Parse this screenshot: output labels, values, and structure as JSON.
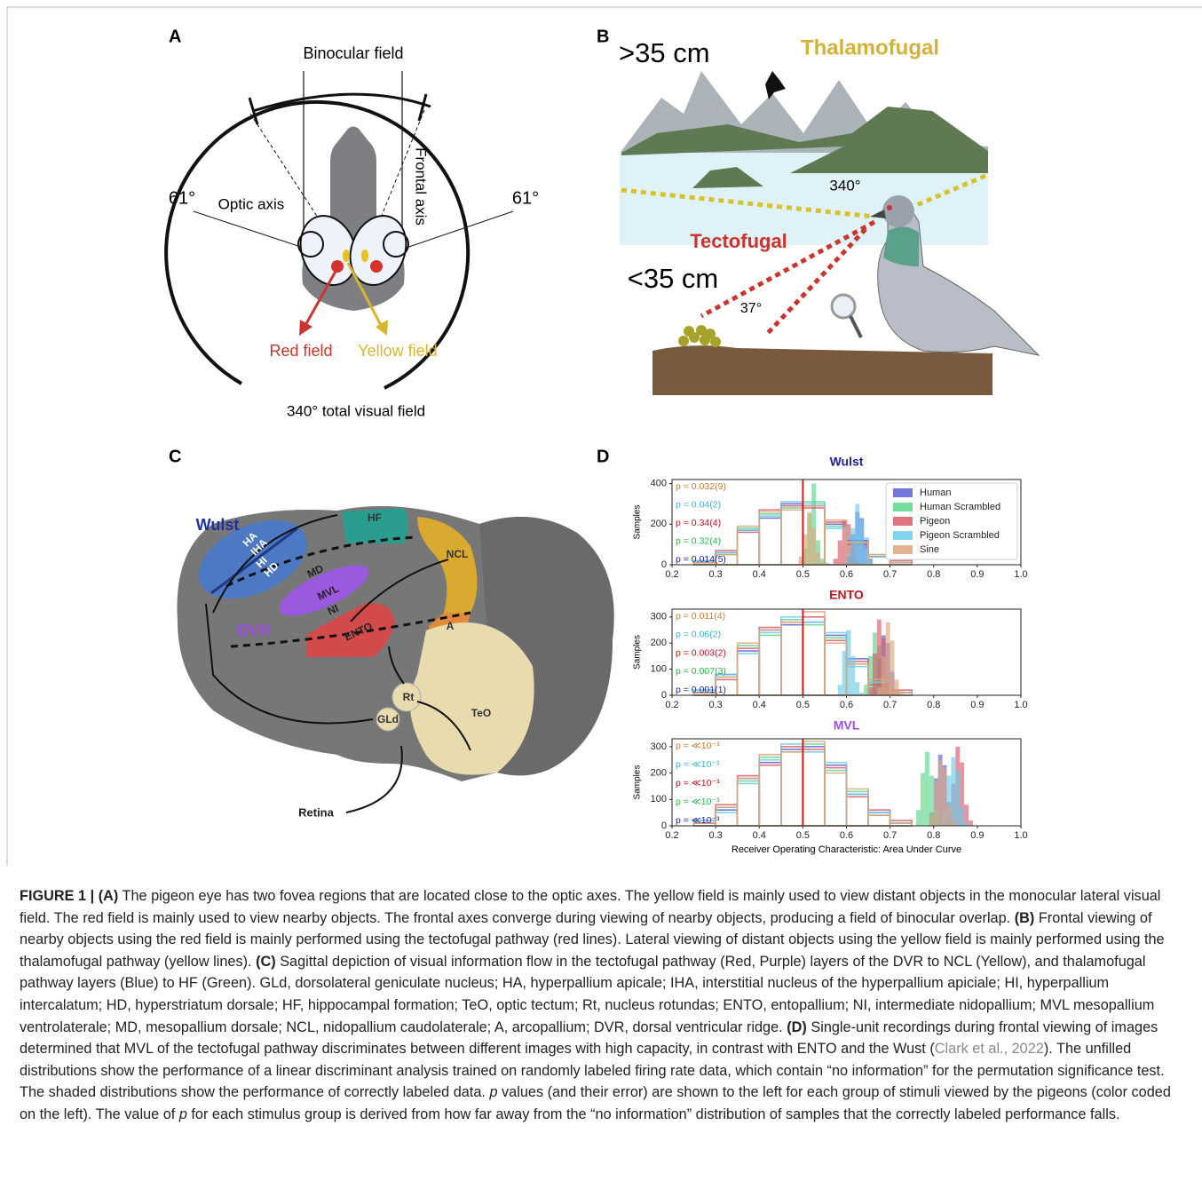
{
  "panel_a": {
    "label": "A",
    "binocular": "Binocular field",
    "angle_left": "61°",
    "angle_right": "61°",
    "optic_axis": "Optic axis",
    "frontal_axis": "Frontal axis",
    "red_field": "Red field",
    "yellow_field": "Yellow field",
    "total": "340° total visual field"
  },
  "panel_b": {
    "label": "B",
    "far": ">35 cm",
    "near": "<35 cm",
    "thalamofugal": "Thalamofugal",
    "tectofugal": "Tectofugal",
    "wide_angle": "340°",
    "narrow_angle": "37°"
  },
  "panel_c": {
    "label": "C",
    "wulst": "Wulst",
    "dvr": "DVR",
    "ha": "HA",
    "iha": "IHA",
    "hi": "HI",
    "hd": "HD",
    "hf": "HF",
    "ncl": "NCL",
    "md": "MD",
    "mvl": "MVL",
    "ni": "NI",
    "ento": "ENTO",
    "a": "A",
    "rt": "Rt",
    "gld": "GLd",
    "teo": "TeO",
    "retina": "Retina"
  },
  "panel_d": {
    "label": "D"
  },
  "chart_data": [
    {
      "type": "histogram",
      "title": "Wulst",
      "title_color": "#1f1f9e",
      "ylabel": "Samples",
      "xlim": [
        0.2,
        1.0
      ],
      "xticks": [
        0.2,
        0.3,
        0.4,
        0.5,
        0.6,
        0.7,
        0.8,
        0.9,
        {
          "value": 1.0,
          "label": "1.0"
        }
      ],
      "ylim": [
        0,
        420
      ],
      "yticks": [
        0,
        200,
        400
      ],
      "reference_line": {
        "value": 0.5,
        "color": "#d62020"
      },
      "legend": "upper right",
      "null_bins": [
        0.25,
        0.3,
        0.35,
        0.4,
        0.45,
        0.5,
        0.55,
        0.6,
        0.65,
        0.7,
        0.75
      ],
      "series": [
        {
          "name": "Human",
          "color": "#5b5fd6",
          "label_color": "#1f1f9e",
          "p_label": "p = 0.014(5)",
          "null_counts": [
            10,
            60,
            170,
            230,
            300,
            290,
            200,
            120,
            40,
            10
          ],
          "bins": [
            0.6,
            0.61,
            0.62,
            0.63,
            0.64,
            0.65,
            0.66
          ],
          "counts": [
            40,
            150,
            260,
            230,
            120,
            30
          ]
        },
        {
          "name": "Human Scrambled",
          "color": "#5dd68c",
          "label_color": "#2eb34a",
          "p_label": "p = 0.32(4)",
          "null_counts": [
            20,
            50,
            180,
            250,
            280,
            310,
            190,
            110,
            50,
            10
          ],
          "bins": [
            0.5,
            0.51,
            0.52,
            0.53,
            0.54,
            0.55,
            0.56
          ],
          "counts": [
            80,
            250,
            400,
            120,
            30,
            10
          ]
        },
        {
          "name": "Pigeon",
          "color": "#d95b6a",
          "label_color": "#c0141e",
          "p_label": "p = 0.34(4)",
          "null_counts": [
            10,
            70,
            160,
            270,
            290,
            280,
            210,
            100,
            40,
            20
          ],
          "bins": [
            0.57,
            0.58,
            0.59,
            0.6,
            0.61,
            0.62,
            0.63
          ],
          "counts": [
            30,
            120,
            220,
            200,
            90,
            20
          ]
        },
        {
          "name": "Pigeon Scrambled",
          "color": "#6ccbe8",
          "label_color": "#3fb2d0",
          "p_label": "p = 0.04(2)",
          "null_counts": [
            20,
            60,
            170,
            240,
            310,
            300,
            180,
            130,
            40,
            10
          ],
          "bins": [
            0.6,
            0.61,
            0.62,
            0.63,
            0.64,
            0.65,
            0.66
          ],
          "counts": [
            50,
            180,
            300,
            220,
            80,
            20
          ]
        },
        {
          "name": "Sine",
          "color": "#dca77c",
          "label_color": "#c87f3a",
          "p_label": "p = 0.032(9)",
          "null_counts": [
            10,
            50,
            190,
            260,
            270,
            290,
            220,
            110,
            50,
            10
          ],
          "bins": [
            0.49,
            0.5,
            0.51,
            0.52,
            0.53,
            0.54,
            0.55
          ],
          "counts": [
            40,
            150,
            260,
            180,
            60,
            10
          ]
        }
      ]
    },
    {
      "type": "histogram",
      "title": "ENTO",
      "title_color": "#c0141e",
      "ylabel": "Samples",
      "xlim": [
        0.2,
        1.0
      ],
      "xticks": [
        0.2,
        0.3,
        0.4,
        0.5,
        0.6,
        0.7,
        0.8,
        0.9,
        {
          "value": 1.0,
          "label": "1.0"
        }
      ],
      "ylim": [
        0,
        330
      ],
      "yticks": [
        0,
        100,
        200,
        300
      ],
      "reference_line": {
        "value": 0.5,
        "color": "#d62020"
      },
      "null_bins": [
        0.25,
        0.3,
        0.35,
        0.4,
        0.45,
        0.5,
        0.55,
        0.6,
        0.65,
        0.7,
        0.75
      ],
      "series": [
        {
          "color": "#5b5fd6",
          "label_color": "#1f1f9e",
          "p_label": "p = 0.001(1)",
          "null_counts": [
            10,
            80,
            170,
            250,
            270,
            280,
            230,
            140,
            50,
            10
          ],
          "bins": [
            0.66,
            0.67,
            0.68,
            0.69,
            0.7,
            0.71,
            0.72
          ],
          "counts": [
            30,
            140,
            230,
            200,
            90,
            20
          ]
        },
        {
          "color": "#5dd68c",
          "label_color": "#2eb34a",
          "p_label": "p = 0.007(3)",
          "null_counts": [
            20,
            70,
            190,
            230,
            290,
            270,
            220,
            120,
            60,
            10
          ],
          "bins": [
            0.64,
            0.65,
            0.66,
            0.67,
            0.68,
            0.69,
            0.7
          ],
          "counts": [
            40,
            150,
            240,
            190,
            80,
            20
          ]
        },
        {
          "color": "#d95b6a",
          "label_color": "#c0141e",
          "p_label": "p = 0.003(2)",
          "null_counts": [
            10,
            60,
            180,
            260,
            280,
            300,
            210,
            130,
            40,
            20
          ],
          "bins": [
            0.65,
            0.66,
            0.67,
            0.68,
            0.69,
            0.7,
            0.71
          ],
          "counts": [
            30,
            160,
            290,
            220,
            70,
            20
          ]
        },
        {
          "color": "#6ccbe8",
          "label_color": "#3fb2d0",
          "p_label": "p = 0.06(2)",
          "null_counts": [
            20,
            80,
            160,
            240,
            300,
            280,
            240,
            110,
            50,
            10
          ],
          "bins": [
            0.58,
            0.59,
            0.6,
            0.61,
            0.62,
            0.63,
            0.64
          ],
          "counts": [
            40,
            170,
            250,
            150,
            50,
            10
          ]
        },
        {
          "color": "#dca77c",
          "label_color": "#c87f3a",
          "p_label": "p = 0.011(4)",
          "null_counts": [
            10,
            70,
            200,
            250,
            280,
            320,
            200,
            120,
            60,
            10
          ],
          "bins": [
            0.67,
            0.68,
            0.69,
            0.7,
            0.71,
            0.72,
            0.73
          ],
          "counts": [
            30,
            150,
            280,
            210,
            60,
            20
          ]
        }
      ]
    },
    {
      "type": "histogram",
      "title": "MVL",
      "title_color": "#9b4fe0",
      "ylabel": "Samples",
      "xlabel": "Receiver Operating Characteristic: Area Under Curve",
      "xlim": [
        0.2,
        1.0
      ],
      "xticks": [
        0.2,
        0.3,
        0.4,
        0.5,
        0.6,
        0.7,
        0.8,
        0.9,
        {
          "value": 1.0,
          "label": "1.0"
        }
      ],
      "ylim": [
        0,
        330
      ],
      "yticks": [
        0,
        100,
        200,
        300
      ],
      "reference_line": {
        "value": 0.5,
        "color": "#d62020"
      },
      "null_bins": [
        0.25,
        0.3,
        0.35,
        0.4,
        0.45,
        0.5,
        0.55,
        0.6,
        0.65,
        0.7,
        0.75
      ],
      "series": [
        {
          "color": "#5b5fd6",
          "label_color": "#1f1f9e",
          "p_label": "p = ≪10⁻³",
          "null_counts": [
            10,
            60,
            180,
            240,
            290,
            300,
            230,
            120,
            50,
            10
          ],
          "bins": [
            0.79,
            0.8,
            0.81,
            0.82,
            0.83,
            0.84,
            0.85
          ],
          "counts": [
            50,
            180,
            270,
            230,
            90,
            20
          ]
        },
        {
          "color": "#5dd68c",
          "label_color": "#2eb34a",
          "p_label": "p = ≪10⁻³",
          "null_counts": [
            20,
            70,
            170,
            260,
            280,
            310,
            210,
            130,
            40,
            10
          ],
          "bins": [
            0.76,
            0.77,
            0.78,
            0.79,
            0.8,
            0.81,
            0.82
          ],
          "counts": [
            60,
            200,
            280,
            190,
            60,
            10
          ]
        },
        {
          "color": "#d95b6a",
          "label_color": "#c0141e",
          "p_label": "p = ≪10⁻³",
          "null_counts": [
            10,
            80,
            190,
            230,
            300,
            290,
            220,
            110,
            60,
            20
          ],
          "bins": [
            0.83,
            0.84,
            0.85,
            0.86,
            0.87,
            0.88,
            0.89
          ],
          "counts": [
            40,
            160,
            300,
            240,
            80,
            20
          ]
        },
        {
          "color": "#6ccbe8",
          "label_color": "#3fb2d0",
          "p_label": "p = ≪10⁻³",
          "null_counts": [
            20,
            50,
            160,
            250,
            310,
            280,
            240,
            120,
            50,
            10
          ],
          "bins": [
            0.82,
            0.83,
            0.84,
            0.85,
            0.86,
            0.87,
            0.88
          ],
          "counts": [
            50,
            190,
            260,
            210,
            70,
            10
          ]
        },
        {
          "color": "#dca77c",
          "label_color": "#c87f3a",
          "p_label": "p = ≪10⁻³",
          "null_counts": [
            10,
            70,
            180,
            270,
            280,
            320,
            200,
            140,
            40,
            10
          ],
          "bins": [
            0.79,
            0.8,
            0.81,
            0.82,
            0.83,
            0.84,
            0.85
          ],
          "counts": [
            40,
            170,
            250,
            220,
            80,
            20
          ]
        }
      ]
    }
  ],
  "caption": [
    "FIGURE 1 | ",
    "(A)",
    " The pigeon eye has two fovea regions that are located close to the optic axes. The yellow field is mainly used to view distant objects in the monocular lateral visual field. The red field is mainly used to view nearby objects. The frontal axes converge during viewing of nearby objects, producing a field of binocular overlap. ",
    "(B)",
    " Frontal viewing of nearby objects using the red field is mainly performed using the tectofugal pathway (red lines). Lateral viewing of distant objects using the yellow field is mainly performed using the thalamofugal pathway (yellow lines). ",
    "(C)",
    " Sagittal depiction of visual information flow in the tectofugal pathway (Red, Purple) layers of the DVR to NCL (Yellow), and thalamofugal pathway layers (Blue) to HF (Green). GLd, dorsolateral geniculate nucleus; HA, hyperpallium apicale; IHA, interstitial nucleus of the hyperpallium apiciale; HI, hyperpallium intercalatum; HD, hyperstriatum dorsale; HF, hippocampal formation; TeO, optic tectum; Rt, nucleus rotundas; ENTO, entopallium; NI, intermediate nidopallium; MVL mesopallium ventrolaterale; MD, mesopallium dorsale; NCL, nidopallium caudolaterale; A, arcopallium; DVR, dorsal ventricular ridge. ",
    "(D)",
    " Single-unit recordings during frontal viewing of images determined that MVL of the tectofugal pathway discriminates between different images with high capacity, in contrast with ENTO and the Wust (",
    "Clark et al., 2022",
    "). The unfilled distributions show the performance of a linear discriminant analysis trained on randomly labeled firing rate data, which contain “no information” for the permutation significance test. The shaded distributions show the performance of correctly labeled data. ",
    "p",
    " values (and their error) are shown to the left for each group of stimuli viewed by the pigeons (color coded on the left). The value of ",
    "p",
    " for each stimulus group is derived from how far away from the “no information” distribution of samples that the correctly labeled performance falls."
  ]
}
